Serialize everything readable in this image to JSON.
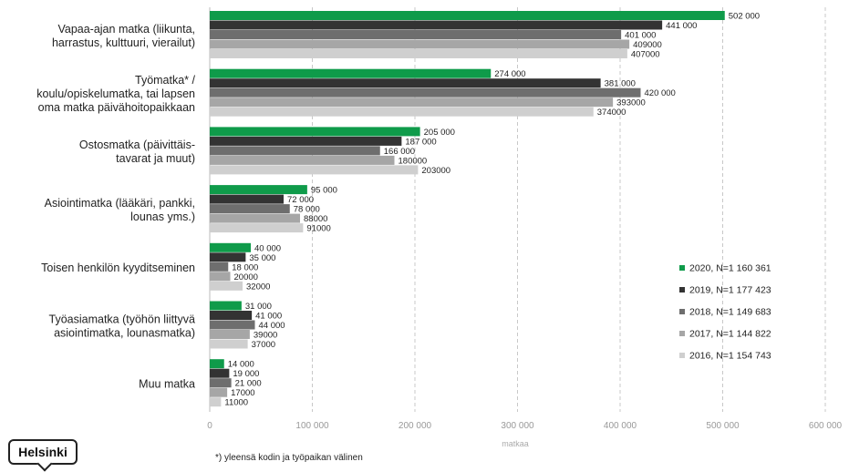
{
  "chart_data": {
    "type": "bar",
    "orientation": "horizontal",
    "categories": [
      [
        "Vapaa-ajan matka  (liikunta,",
        "harrastus, kulttuuri, vierailut)"
      ],
      [
        "Työmatka* /",
        "koulu/opiskelumatka,  tai lapsen",
        "oma matka päivähoitopaikkaan"
      ],
      [
        "Ostosmatka  (päivittäis-",
        "tavarat ja muut)"
      ],
      [
        "Asiointimatka  (lääkäri, pankki,",
        "lounas yms.)"
      ],
      [
        "Toisen henkilön kyyditseminen"
      ],
      [
        "Työasiamatka  (työhön liittyvä",
        "asiointimatka, lounasmatka)"
      ],
      [
        "Muu matka"
      ]
    ],
    "series": [
      {
        "name": "2020, N=1 160 361",
        "color": "#0f9b4a",
        "values": [
          502000,
          274000,
          205000,
          95000,
          40000,
          31000,
          14000
        ],
        "labels": [
          "502 000",
          "274 000",
          "205 000",
          "95 000",
          "40 000",
          "31 000",
          "14 000"
        ]
      },
      {
        "name": "2019, N=1 177 423",
        "color": "#333333",
        "values": [
          441000,
          381000,
          187000,
          72000,
          35000,
          41000,
          19000
        ],
        "labels": [
          "441 000",
          "381 000",
          "187 000",
          "72 000",
          "35 000",
          "41 000",
          "19 000"
        ]
      },
      {
        "name": "2018, N=1 149 683",
        "color": "#6e6e6e",
        "values": [
          401000,
          420000,
          166000,
          78000,
          18000,
          44000,
          21000
        ],
        "labels": [
          "401 000",
          "420 000",
          "166 000",
          "78 000",
          "18 000",
          "44 000",
          "21 000"
        ]
      },
      {
        "name": "2017, N=1 144 822",
        "color": "#a6a6a6",
        "values": [
          409000,
          393000,
          180000,
          88000,
          20000,
          39000,
          17000
        ],
        "labels": [
          "409000",
          "393000",
          "180000",
          "88000",
          "20000",
          "39000",
          "17000"
        ]
      },
      {
        "name": "2016, N=1 154 743",
        "color": "#cfcfcf",
        "values": [
          407000,
          374000,
          203000,
          91000,
          32000,
          37000,
          11000
        ],
        "labels": [
          "407000",
          "374000",
          "203000",
          "91000",
          "32000",
          "37000",
          "11000"
        ]
      }
    ],
    "xlim": [
      0,
      600000
    ],
    "xticks": [
      0,
      100000,
      200000,
      300000,
      400000,
      500000,
      600000
    ],
    "xtick_labels": [
      "0",
      "100 000",
      "200 000",
      "300 000",
      "400 000",
      "500 000",
      "600 000"
    ],
    "xlabel": "matkaa",
    "grid": "vertical-dashed",
    "legend": "right"
  },
  "logo_text": "Helsinki",
  "footnote": "*) yleensä kodin ja työpaikan välinen"
}
